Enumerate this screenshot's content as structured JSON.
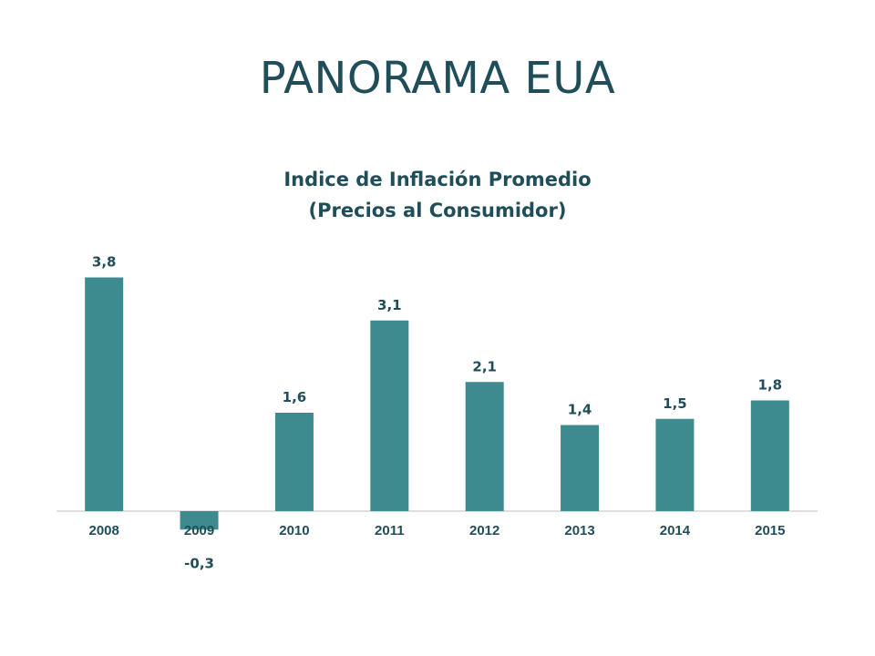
{
  "slide": {
    "title": "PANORAMA EUA"
  },
  "chart_data": {
    "type": "bar",
    "title_line1": "Indice de Inflación Promedio",
    "title_line2": "(Precios al Consumidor)",
    "categories": [
      "2008",
      "2009",
      "2010",
      "2011",
      "2012",
      "2013",
      "2014",
      "2015"
    ],
    "values": [
      3.8,
      -0.3,
      1.6,
      3.1,
      2.1,
      1.4,
      1.5,
      1.8
    ],
    "value_labels": [
      "3,8",
      "-0,3",
      "1,6",
      "3,1",
      "2,1",
      "1,4",
      "1,5",
      "1,8"
    ],
    "bar_color": "#3d8b8f",
    "text_color": "#1f4e5a",
    "axis_color": "#bfbfbf",
    "grid": false,
    "legend": "none"
  }
}
